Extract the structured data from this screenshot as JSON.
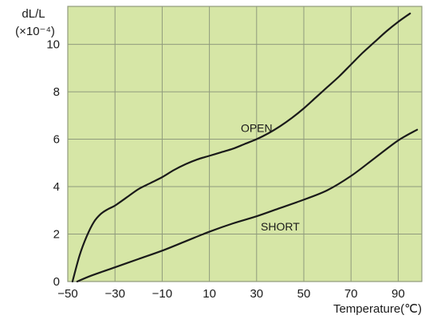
{
  "chart_data": {
    "type": "line",
    "ylabel": "dL/L",
    "yunit": "(×10⁻⁴)",
    "xlabel": "Temperature(℃)",
    "xlim": [
      -50,
      100
    ],
    "ylim": [
      0,
      11.6
    ],
    "xticks": [
      -50,
      -30,
      -10,
      10,
      30,
      50,
      70,
      90
    ],
    "xtick_labels": [
      "−50",
      "−30",
      "−10",
      "10",
      "30",
      "50",
      "70",
      "90"
    ],
    "yticks": [
      0,
      2,
      4,
      6,
      8,
      10
    ],
    "ytick_labels": [
      "0",
      "2",
      "4",
      "6",
      "8",
      "10"
    ],
    "grid": true,
    "colors": {
      "plot_background": "#d6e6a6",
      "grid": "#8f9a7c",
      "curve": "#1a1a1a"
    },
    "series": [
      {
        "name": "OPEN",
        "x": [
          -48,
          -45,
          -42,
          -39,
          -36,
          -33,
          -30,
          -25,
          -20,
          -15,
          -10,
          -5,
          0,
          5,
          10,
          15,
          20,
          25,
          30,
          35,
          40,
          45,
          50,
          55,
          60,
          65,
          70,
          75,
          80,
          85,
          90,
          95
        ],
        "y": [
          0,
          1.1,
          1.9,
          2.5,
          2.85,
          3.05,
          3.2,
          3.55,
          3.9,
          4.15,
          4.4,
          4.7,
          4.95,
          5.15,
          5.3,
          5.45,
          5.6,
          5.8,
          6.0,
          6.25,
          6.55,
          6.9,
          7.3,
          7.75,
          8.2,
          8.65,
          9.15,
          9.65,
          10.1,
          10.55,
          10.95,
          11.3
        ]
      },
      {
        "name": "SHORT",
        "x": [
          -46,
          -40,
          -30,
          -20,
          -10,
          0,
          10,
          20,
          30,
          40,
          50,
          60,
          70,
          80,
          90,
          98
        ],
        "y": [
          0,
          0.25,
          0.6,
          0.95,
          1.3,
          1.7,
          2.1,
          2.45,
          2.75,
          3.1,
          3.45,
          3.85,
          4.45,
          5.2,
          5.95,
          6.4
        ]
      }
    ],
    "annotations": [
      {
        "text": "OPEN",
        "x": 30,
        "y": 6.3
      },
      {
        "text": "SHORT",
        "x": 40,
        "y": 2.15
      }
    ]
  }
}
